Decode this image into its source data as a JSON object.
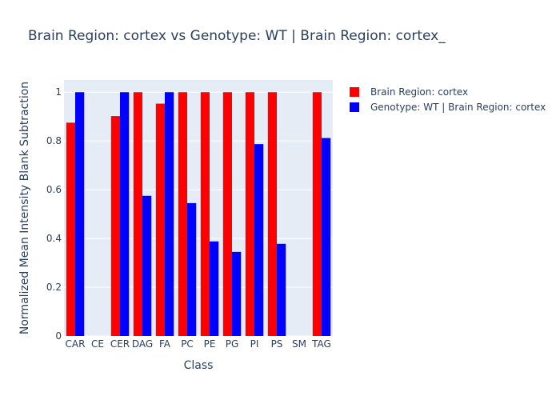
{
  "chart_data": {
    "type": "bar",
    "title": "Brain Region: cortex vs Genotype: WT | Brain Region: cortex_",
    "xlabel": "Class",
    "ylabel": "Normalized Mean Intensity Blank Subtraction",
    "categories": [
      "CAR",
      "CE",
      "CER",
      "DAG",
      "FA",
      "PC",
      "PE",
      "PG",
      "PI",
      "PS",
      "SM",
      "TAG"
    ],
    "ylim": [
      0,
      1.05
    ],
    "yticks": [
      0,
      0.2,
      0.4,
      0.6,
      0.8,
      1
    ],
    "ytick_labels": [
      "0",
      "0.2",
      "0.4",
      "0.6",
      "0.8",
      "1"
    ],
    "grid": true,
    "legend_position": "top-right",
    "plot_background": "#e5ecf6",
    "series": [
      {
        "name": "Brain Region: cortex",
        "color": "#ff0000",
        "values": [
          0.875,
          null,
          0.902,
          1.0,
          0.953,
          1.0,
          1.0,
          1.0,
          1.0,
          1.0,
          null,
          1.0
        ]
      },
      {
        "name": "Genotype: WT | Brain Region: cortex",
        "color": "#0000ff",
        "values": [
          1.0,
          null,
          1.0,
          0.575,
          1.0,
          0.545,
          0.388,
          0.345,
          0.787,
          0.378,
          null,
          0.812
        ]
      }
    ]
  }
}
